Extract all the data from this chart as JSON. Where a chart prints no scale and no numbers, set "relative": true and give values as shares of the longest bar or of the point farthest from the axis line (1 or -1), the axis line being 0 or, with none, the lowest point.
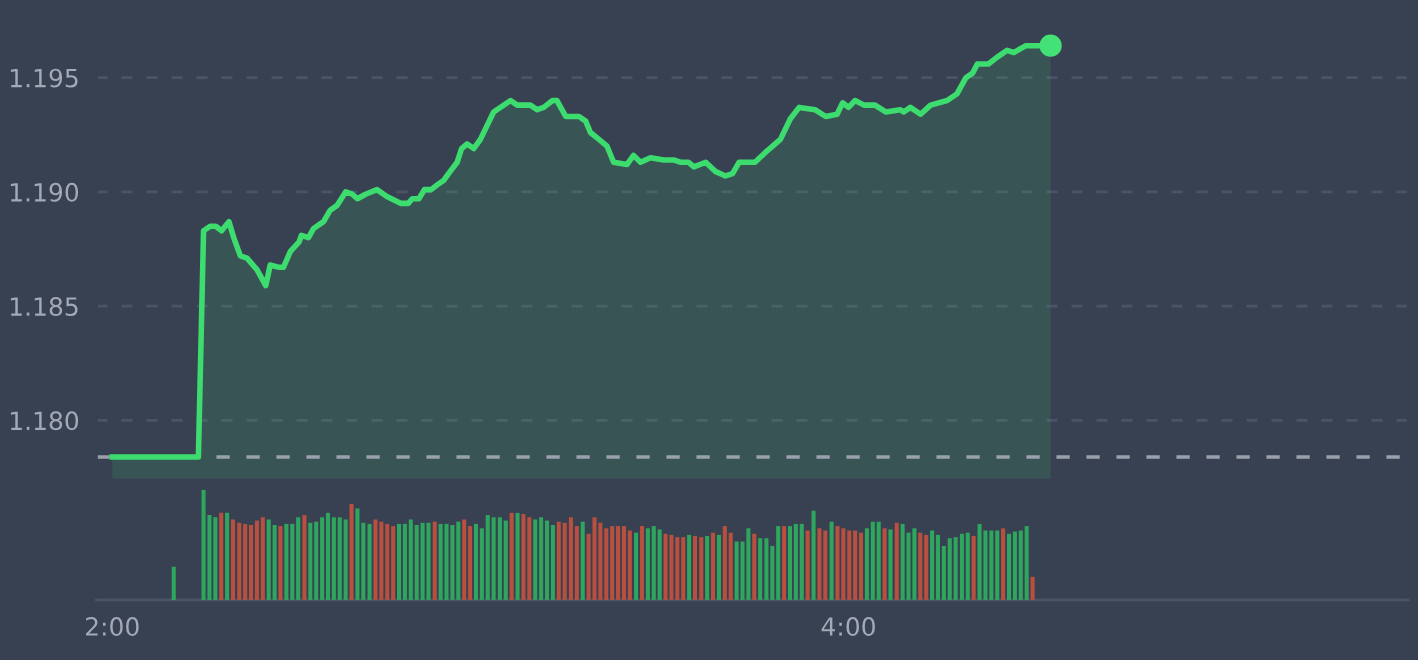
{
  "chart_data": [
    {
      "type": "area",
      "xlim": [
        1.957,
        5.52
      ],
      "ylim": [
        1.1774,
        1.1984
      ],
      "tick_labels": "y",
      "grid": "y",
      "yticks": [
        {
          "value": 1.18,
          "label": "1.180"
        },
        {
          "value": 1.185,
          "label": "1.185"
        },
        {
          "value": 1.19,
          "label": "1.190"
        },
        {
          "value": 1.195,
          "label": "1.195"
        }
      ],
      "ref_lines": [
        {
          "axis": "y",
          "value": 1.1784,
          "color": "#9aa1ad",
          "line_style": "dashed"
        }
      ],
      "series": [
        {
          "type": "area",
          "color": "#3ddc6f",
          "x": [
            2.0,
            2.234,
            2.248,
            2.266,
            2.281,
            2.297,
            2.317,
            2.33,
            2.348,
            2.366,
            2.393,
            2.417,
            2.429,
            2.453,
            2.465,
            2.484,
            2.507,
            2.514,
            2.533,
            2.547,
            2.574,
            2.592,
            2.61,
            2.634,
            2.652,
            2.666,
            2.688,
            2.719,
            2.746,
            2.783,
            2.804,
            2.815,
            2.833,
            2.848,
            2.866,
            2.882,
            2.9,
            2.918,
            2.937,
            2.949,
            2.964,
            2.982,
            3.0,
            3.036,
            3.082,
            3.1,
            3.136,
            3.154,
            3.172,
            3.196,
            3.208,
            3.232,
            3.268,
            3.286,
            3.299,
            3.322,
            3.344,
            3.362,
            3.398,
            3.416,
            3.435,
            3.462,
            3.498,
            3.525,
            3.543,
            3.565,
            3.58,
            3.612,
            3.638,
            3.666,
            3.685,
            3.703,
            3.746,
            3.779,
            3.815,
            3.842,
            3.866,
            3.909,
            3.938,
            3.969,
            3.984,
            4.0,
            4.018,
            4.042,
            4.072,
            4.101,
            4.141,
            4.15,
            4.168,
            4.196,
            4.223,
            4.268,
            4.295,
            4.319,
            4.337,
            4.35,
            4.38,
            4.404,
            4.431,
            4.449,
            4.482,
            4.522,
            4.549
          ],
          "values": [
            1.1784,
            1.1784,
            1.1883,
            1.1885,
            1.1885,
            1.1883,
            1.1887,
            1.188,
            1.1872,
            1.1871,
            1.1866,
            1.1859,
            1.1868,
            1.1867,
            1.1867,
            1.1874,
            1.1878,
            1.1881,
            1.188,
            1.1884,
            1.1887,
            1.1892,
            1.1894,
            1.19,
            1.1899,
            1.1897,
            1.1899,
            1.1901,
            1.1898,
            1.1895,
            1.1895,
            1.1897,
            1.1897,
            1.1901,
            1.1901,
            1.1903,
            1.1905,
            1.1909,
            1.1913,
            1.1919,
            1.1921,
            1.1919,
            1.1923,
            1.1935,
            1.194,
            1.1938,
            1.1938,
            1.1936,
            1.1937,
            1.194,
            1.194,
            1.1933,
            1.1933,
            1.1931,
            1.1926,
            1.1923,
            1.192,
            1.1913,
            1.1912,
            1.1916,
            1.1913,
            1.1915,
            1.1914,
            1.1914,
            1.1913,
            1.1913,
            1.1911,
            1.1913,
            1.1909,
            1.1907,
            1.1908,
            1.1913,
            1.1913,
            1.1918,
            1.1923,
            1.1932,
            1.1937,
            1.1936,
            1.1933,
            1.1934,
            1.1939,
            1.1937,
            1.194,
            1.1938,
            1.1938,
            1.1935,
            1.1936,
            1.1935,
            1.1937,
            1.1934,
            1.1938,
            1.194,
            1.1943,
            1.195,
            1.1952,
            1.1956,
            1.1956,
            1.1959,
            1.1962,
            1.1961,
            1.1964,
            1.1964,
            1.1964
          ]
        },
        {
          "type": "scatter",
          "marker": "circle",
          "color": "#44e276",
          "x": [
            4.549
          ],
          "values": [
            1.1964
          ]
        }
      ]
    },
    {
      "type": "bar",
      "relative": true,
      "xlim": [
        1.957,
        5.52
      ],
      "tick_labels": "x",
      "xticks": [
        {
          "value": 2,
          "label": "2:00"
        },
        {
          "value": 4,
          "label": "4:00"
        }
      ],
      "x": [
        2.167,
        2.248,
        2.264,
        2.28,
        2.296,
        2.312,
        2.328,
        2.345,
        2.361,
        2.377,
        2.393,
        2.409,
        2.425,
        2.441,
        2.457,
        2.473,
        2.489,
        2.505,
        2.522,
        2.538,
        2.554,
        2.57,
        2.586,
        2.602,
        2.618,
        2.634,
        2.65,
        2.666,
        2.682,
        2.699,
        2.715,
        2.731,
        2.747,
        2.763,
        2.779,
        2.795,
        2.811,
        2.827,
        2.843,
        2.859,
        2.876,
        2.892,
        2.908,
        2.924,
        2.94,
        2.956,
        2.972,
        2.988,
        3.004,
        3.02,
        3.036,
        3.053,
        3.069,
        3.085,
        3.101,
        3.117,
        3.133,
        3.149,
        3.165,
        3.181,
        3.197,
        3.213,
        3.229,
        3.246,
        3.262,
        3.278,
        3.294,
        3.31,
        3.326,
        3.342,
        3.358,
        3.374,
        3.39,
        3.406,
        3.423,
        3.439,
        3.455,
        3.471,
        3.487,
        3.503,
        3.519,
        3.535,
        3.551,
        3.567,
        3.583,
        3.6,
        3.616,
        3.632,
        3.648,
        3.664,
        3.68,
        3.696,
        3.712,
        3.728,
        3.744,
        3.76,
        3.777,
        3.793,
        3.809,
        3.825,
        3.841,
        3.857,
        3.873,
        3.889,
        3.905,
        3.921,
        3.937,
        3.954,
        3.97,
        3.986,
        4.002,
        4.018,
        4.034,
        4.05,
        4.066,
        4.082,
        4.098,
        4.114,
        4.131,
        4.147,
        4.163,
        4.179,
        4.195,
        4.211,
        4.227,
        4.243,
        4.259,
        4.275,
        4.291,
        4.308,
        4.324,
        4.34,
        4.356,
        4.372,
        4.388,
        4.404,
        4.42,
        4.436,
        4.452,
        4.468,
        4.484,
        4.5
      ],
      "values": [
        0.3,
        1.0,
        0.77,
        0.75,
        0.79,
        0.79,
        0.73,
        0.7,
        0.69,
        0.68,
        0.72,
        0.75,
        0.73,
        0.68,
        0.67,
        0.69,
        0.69,
        0.75,
        0.77,
        0.7,
        0.71,
        0.75,
        0.79,
        0.75,
        0.75,
        0.73,
        0.87,
        0.83,
        0.7,
        0.69,
        0.73,
        0.71,
        0.69,
        0.67,
        0.69,
        0.69,
        0.73,
        0.68,
        0.7,
        0.7,
        0.71,
        0.69,
        0.69,
        0.68,
        0.71,
        0.73,
        0.67,
        0.69,
        0.65,
        0.77,
        0.75,
        0.75,
        0.72,
        0.79,
        0.79,
        0.78,
        0.75,
        0.73,
        0.75,
        0.72,
        0.68,
        0.71,
        0.7,
        0.75,
        0.67,
        0.71,
        0.6,
        0.75,
        0.7,
        0.65,
        0.67,
        0.67,
        0.67,
        0.63,
        0.61,
        0.67,
        0.65,
        0.67,
        0.64,
        0.6,
        0.59,
        0.57,
        0.57,
        0.59,
        0.58,
        0.57,
        0.58,
        0.61,
        0.59,
        0.67,
        0.61,
        0.53,
        0.53,
        0.65,
        0.6,
        0.56,
        0.56,
        0.49,
        0.67,
        0.67,
        0.67,
        0.69,
        0.69,
        0.63,
        0.81,
        0.65,
        0.63,
        0.71,
        0.67,
        0.65,
        0.63,
        0.63,
        0.61,
        0.65,
        0.71,
        0.71,
        0.65,
        0.64,
        0.7,
        0.69,
        0.61,
        0.65,
        0.61,
        0.59,
        0.63,
        0.59,
        0.49,
        0.56,
        0.57,
        0.6,
        0.61,
        0.58,
        0.69,
        0.63,
        0.63,
        0.63,
        0.65,
        0.6,
        0.62,
        0.63,
        0.67,
        0.21
      ],
      "colors": [
        "#2fa65e",
        "#2fa65e",
        "#2fa65e",
        "#2fa65e",
        "#b9503f",
        "#2fa65e",
        "#b9503f",
        "#b9503f",
        "#b9503f",
        "#b9503f",
        "#b9503f",
        "#b9503f",
        "#2fa65e",
        "#2fa65e",
        "#b9503f",
        "#2fa65e",
        "#2fa65e",
        "#2fa65e",
        "#b9503f",
        "#2fa65e",
        "#2fa65e",
        "#2fa65e",
        "#2fa65e",
        "#2fa65e",
        "#2fa65e",
        "#2fa65e",
        "#b9503f",
        "#2fa65e",
        "#2fa65e",
        "#2fa65e",
        "#b9503f",
        "#b9503f",
        "#b9503f",
        "#b9503f",
        "#2fa65e",
        "#2fa65e",
        "#2fa65e",
        "#2fa65e",
        "#2fa65e",
        "#2fa65e",
        "#b9503f",
        "#2fa65e",
        "#2fa65e",
        "#2fa65e",
        "#2fa65e",
        "#b9503f",
        "#b9503f",
        "#2fa65e",
        "#2fa65e",
        "#2fa65e",
        "#2fa65e",
        "#2fa65e",
        "#2fa65e",
        "#b9503f",
        "#2fa65e",
        "#b9503f",
        "#b9503f",
        "#2fa65e",
        "#2fa65e",
        "#2fa65e",
        "#2fa65e",
        "#b9503f",
        "#b9503f",
        "#b9503f",
        "#b9503f",
        "#2fa65e",
        "#b9503f",
        "#b9503f",
        "#b9503f",
        "#b9503f",
        "#b9503f",
        "#b9503f",
        "#b9503f",
        "#b9503f",
        "#2fa65e",
        "#b9503f",
        "#2fa65e",
        "#2fa65e",
        "#2fa65e",
        "#b9503f",
        "#b9503f",
        "#b9503f",
        "#b9503f",
        "#2fa65e",
        "#b9503f",
        "#b9503f",
        "#2fa65e",
        "#b9503f",
        "#2fa65e",
        "#b9503f",
        "#b9503f",
        "#2fa65e",
        "#2fa65e",
        "#2fa65e",
        "#b9503f",
        "#2fa65e",
        "#2fa65e",
        "#2fa65e",
        "#2fa65e",
        "#b9503f",
        "#2fa65e",
        "#2fa65e",
        "#2fa65e",
        "#b9503f",
        "#2fa65e",
        "#b9503f",
        "#b9503f",
        "#2fa65e",
        "#b9503f",
        "#b9503f",
        "#b9503f",
        "#b9503f",
        "#b9503f",
        "#2fa65e",
        "#2fa65e",
        "#2fa65e",
        "#b9503f",
        "#2fa65e",
        "#b9503f",
        "#2fa65e",
        "#2fa65e",
        "#2fa65e",
        "#b9503f",
        "#b9503f",
        "#2fa65e",
        "#2fa65e",
        "#2fa65e",
        "#2fa65e",
        "#2fa65e",
        "#2fa65e",
        "#2fa65e",
        "#b9503f",
        "#2fa65e",
        "#2fa65e",
        "#2fa65e",
        "#2fa65e",
        "#b9503f",
        "#2fa65e",
        "#2fa65e",
        "#2fa65e",
        "#2fa65e",
        "#b9503f"
      ]
    }
  ]
}
